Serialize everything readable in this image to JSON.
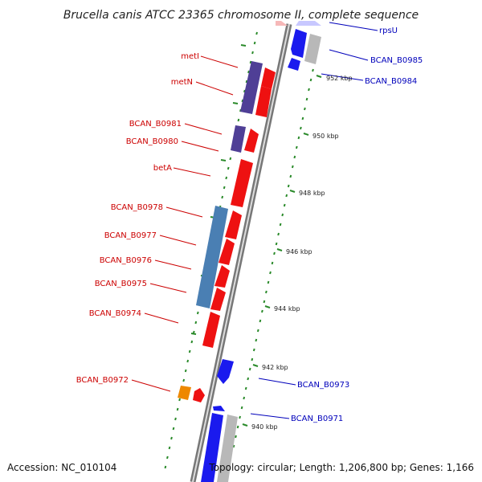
{
  "title": "Brucella canis ATCC 23365 chromosome II, complete sequence",
  "accession": "Accession: NC_010104",
  "topology": "Topology: circular; Length: 1,206,800 bp; Genes: 1,166",
  "colors": {
    "forward": "#ee1111",
    "reverse": "#1a1aee",
    "purple": "#4f3f96",
    "steel": "#4a7fb3",
    "orange": "#ee8800",
    "gray": "#b8b8b8",
    "tick": "#2a8a2a",
    "left_label": "#cc0000",
    "right_label": "#0000bb",
    "backbone": "#777777"
  },
  "left_labels": [
    "metI",
    "metN",
    "BCAN_B0981",
    "BCAN_B0980",
    "betA",
    "BCAN_B0978",
    "BCAN_B0977",
    "BCAN_B0976",
    "BCAN_B0975",
    "BCAN_B0974",
    "BCAN_B0972"
  ],
  "right_labels": [
    "rpsU",
    "BCAN_B0985",
    "BCAN_B0984",
    "BCAN_B0973",
    "BCAN_B0971"
  ],
  "kbp_labels": [
    "952 kbp",
    "950 kbp",
    "948 kbp",
    "946 kbp",
    "944 kbp",
    "942 kbp",
    "940 kbp"
  ]
}
